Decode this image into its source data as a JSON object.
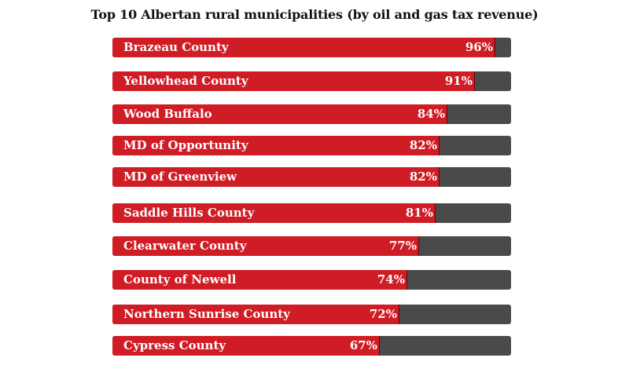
{
  "chart_data": {
    "type": "bar",
    "orientation": "horizontal",
    "title": "Top 10 Albertan rural  municipalities (by oil and gas tax revenue)",
    "categories": [
      "Brazeau County",
      "Yellowhead County",
      "Wood Buffalo",
      "MD of Opportunity",
      "MD of Greenview",
      "Saddle Hills County",
      "Clearwater County",
      "County of Newell",
      "Northern Sunrise County",
      "Cypress County"
    ],
    "values": [
      96,
      91,
      84,
      82,
      82,
      81,
      77,
      74,
      72,
      67
    ],
    "value_labels": [
      "96%",
      "91%",
      "84%",
      "82%",
      "82%",
      "81%",
      "77%",
      "74%",
      "72%",
      "67%"
    ],
    "xlim": [
      0,
      100
    ],
    "grid": false,
    "legend": "none",
    "colors": {
      "fill": "#d01c24",
      "track": "#4a4a4a",
      "text": "#ffffff"
    }
  }
}
